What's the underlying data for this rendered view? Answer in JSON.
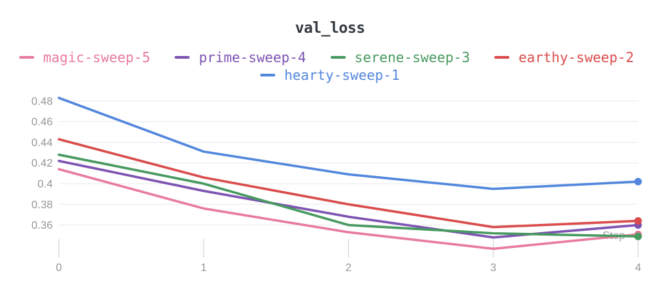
{
  "header": {
    "title": "val_loss"
  },
  "legend": {
    "rows": [
      [
        "magic-sweep-5",
        "prime-sweep-4",
        "serene-sweep-3",
        "earthy-sweep-2"
      ],
      [
        "hearty-sweep-1"
      ]
    ]
  },
  "chart_data": {
    "type": "line",
    "title": "val_loss",
    "xlabel": "Step",
    "x": [
      0,
      1,
      2,
      3,
      4
    ],
    "x_tick_labels": [
      "0",
      "1",
      "2",
      "3",
      "4"
    ],
    "y_ticks": [
      0.36,
      0.38,
      0.4,
      0.42,
      0.44,
      0.46,
      0.48
    ],
    "y_tick_labels": [
      "0.36",
      "0.38",
      "0.4",
      "0.42",
      "0.44",
      "0.46",
      "0.48"
    ],
    "ylim": [
      0.33,
      0.4885
    ],
    "grid": "horizontal",
    "legend_position": "top",
    "end_markers": true,
    "series": [
      {
        "name": "magic-sweep-5",
        "color": "#E87B9F",
        "values": [
          0.414,
          0.376,
          0.353,
          0.337,
          0.351
        ]
      },
      {
        "name": "prime-sweep-4",
        "color": "#7D54B2",
        "values": [
          0.422,
          0.393,
          0.368,
          0.348,
          0.36
        ]
      },
      {
        "name": "serene-sweep-3",
        "color": "#479A5F",
        "values": [
          0.428,
          0.4,
          0.36,
          0.352,
          0.349
        ]
      },
      {
        "name": "earthy-sweep-2",
        "color": "#DA4C4C",
        "values": [
          0.443,
          0.406,
          0.38,
          0.358,
          0.364
        ]
      },
      {
        "name": "hearty-sweep-1",
        "color": "#5387DD",
        "values": [
          0.483,
          0.431,
          0.409,
          0.395,
          0.402
        ]
      }
    ]
  }
}
